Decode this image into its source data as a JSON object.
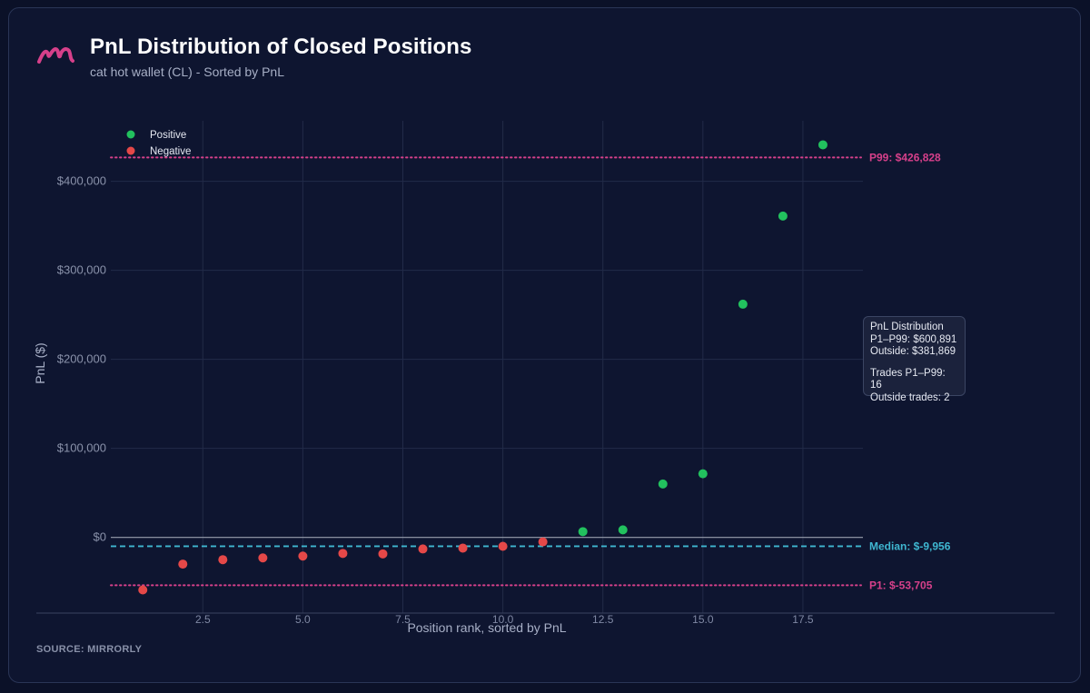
{
  "header": {
    "title": "PnL Distribution of Closed Positions",
    "subtitle": "cat hot wallet (CL) - Sorted by PnL"
  },
  "footer": {
    "source": "SOURCE: MIRRORLY"
  },
  "tooltip": {
    "title": "PnL Distribution",
    "range_pnl": "P1–P99: $600,891",
    "outside_pnl": "Outside: $381,869",
    "range_trades": "Trades P1–P99: 16",
    "outside_trades": "Outside trades: 2"
  },
  "colors": {
    "positive": "#22c15e",
    "negative": "#e54848",
    "percentile": "#d6408a",
    "median": "#3fb7d1",
    "logo": "#d6408a"
  },
  "icons": {
    "logo": "mirrorly-logo-icon"
  },
  "chart_data": {
    "type": "scatter",
    "title": "PnL Distribution of Closed Positions",
    "subtitle": "cat hot wallet (CL) - Sorted by PnL",
    "xlabel": "Position rank, sorted by PnL",
    "ylabel": "PnL ($)",
    "xlim": [
      0.2,
      19.0
    ],
    "ylim": [
      -85000,
      468000
    ],
    "x_ticks": [
      2.5,
      5.0,
      7.5,
      10.0,
      12.5,
      15.0,
      17.5
    ],
    "x_tick_labels": [
      "2.5",
      "5.0",
      "7.5",
      "10.0",
      "12.5",
      "15.0",
      "17.5"
    ],
    "y_ticks": [
      0,
      100000,
      200000,
      300000,
      400000
    ],
    "y_tick_labels": [
      "$0",
      "$100,000",
      "$200,000",
      "$300,000",
      "$400,000"
    ],
    "grid": true,
    "legend_position": "top-left",
    "series": [
      {
        "name": "Positive",
        "x": [
          12,
          13,
          14,
          15,
          16,
          17,
          18
        ],
        "y": [
          6500,
          8500,
          60000,
          71500,
          262000,
          361000,
          441000
        ]
      },
      {
        "name": "Negative",
        "x": [
          1,
          2,
          3,
          4,
          5,
          6,
          7,
          8,
          9,
          10,
          11
        ],
        "y": [
          -59000,
          -30000,
          -25000,
          -23000,
          -21000,
          -18000,
          -18500,
          -13000,
          -12000,
          -10000,
          -5000
        ]
      }
    ],
    "reference_lines": [
      {
        "name": "P99",
        "value": 426828,
        "label": "P99: $426,828",
        "style": "dotted"
      },
      {
        "name": "Median",
        "value": -9956,
        "label": "Median: $-9,956",
        "style": "dashed"
      },
      {
        "name": "P1",
        "value": -53705,
        "label": "P1: $-53,705",
        "style": "dotted"
      }
    ]
  }
}
